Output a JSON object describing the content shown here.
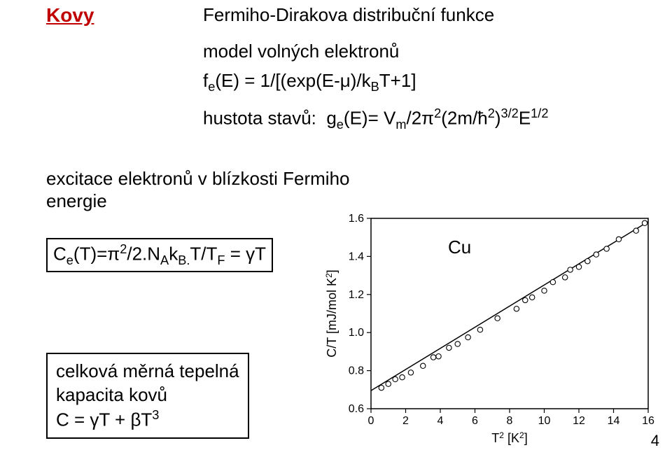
{
  "title": "Kovy",
  "heading_line": "Fermiho-Dirakova distribuční funkce",
  "model_line": "model volných elektronů",
  "fe_eq": "f_e(E) = 1/[(exp(E-μ)/k_BT+1]",
  "hustota_line": "hustota stavů:  g_e(E)= V_m/2π²(2m/ħ²)^{3/2}E^{1/2}",
  "excitace_l1": "excitace elektronů v blízkosti Fermiho",
  "excitace_l2": "energie",
  "cet_eq": "C_e(T)=π²/2.N_Ak_B.T/T_F = γT",
  "summary_l1": "celková měrná tepelná",
  "summary_l2": "kapacita kovů",
  "summary_l3": "C = γT + βT³",
  "cu_label": "Cu",
  "page_number": "4",
  "chart": {
    "type": "scatter+line",
    "background_color": "#ffffff",
    "axis_color": "#000000",
    "frame_color": "#000000",
    "xlabel": "T² [K²]",
    "ylabel": "C/T [mJ/mol K²]",
    "label_fontsize": 18,
    "tick_fontsize": 16,
    "xlim": [
      0,
      16
    ],
    "ylim": [
      0.6,
      1.6
    ],
    "xticks": [
      0,
      2,
      4,
      6,
      8,
      10,
      12,
      14,
      16
    ],
    "yticks": [
      0.6,
      0.8,
      1.0,
      1.2,
      1.4,
      1.6
    ],
    "line_color": "#000000",
    "line_width": 1.5,
    "marker_style": "circle",
    "marker_size": 5,
    "marker_fill": "#ffffff",
    "marker_stroke": "#000000",
    "points_x": [
      0.6,
      1.0,
      1.4,
      1.8,
      2.3,
      3.0,
      3.6,
      3.9,
      4.5,
      5.0,
      5.6,
      6.3,
      7.3,
      8.4,
      8.9,
      9.3,
      10.0,
      10.5,
      11.2,
      11.5,
      12.0,
      12.5,
      13.0,
      13.6,
      14.3,
      15.3,
      15.8
    ],
    "points_y": [
      0.71,
      0.73,
      0.755,
      0.765,
      0.79,
      0.825,
      0.87,
      0.875,
      0.92,
      0.94,
      0.975,
      1.015,
      1.075,
      1.125,
      1.17,
      1.185,
      1.22,
      1.265,
      1.29,
      1.33,
      1.345,
      1.375,
      1.41,
      1.44,
      1.49,
      1.535,
      1.575
    ],
    "fit_intercept": 0.695,
    "fit_slope": 0.0555
  }
}
